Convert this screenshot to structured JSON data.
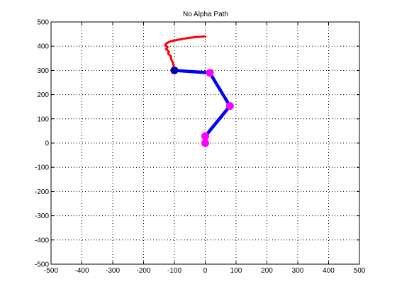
{
  "chart_data": {
    "type": "line",
    "title": "No Alpha Path",
    "xlabel": "",
    "ylabel": "",
    "xlim": [
      -500,
      500
    ],
    "ylim": [
      -500,
      500
    ],
    "xticks": [
      -500,
      -400,
      -300,
      -200,
      -100,
      0,
      100,
      200,
      300,
      400,
      500
    ],
    "yticks": [
      -500,
      -400,
      -300,
      -200,
      -100,
      0,
      100,
      200,
      300,
      400,
      500
    ],
    "grid": true,
    "grid_style": "dotted",
    "series": [
      {
        "role": "path",
        "color": "#ff0000",
        "x": [
          0,
          -30,
          -60,
          -90,
          -110,
          -125,
          -130,
          -122,
          -127,
          -118,
          -120,
          -112,
          -110,
          -105,
          -100
        ],
        "y": [
          440,
          438,
          433,
          426,
          421,
          413,
          404,
          396,
          388,
          378,
          369,
          359,
          345,
          332,
          305
        ]
      },
      {
        "role": "arm",
        "color": "#0000ff",
        "x": [
          -100,
          15,
          80,
          0,
          0
        ],
        "y": [
          300,
          290,
          153,
          28,
          0
        ]
      },
      {
        "role": "joints",
        "color": "#ff00ff",
        "x": [
          15,
          80,
          0,
          0
        ],
        "y": [
          290,
          153,
          28,
          0
        ]
      },
      {
        "role": "end-effector",
        "color": "#0000aa",
        "x": [
          -100
        ],
        "y": [
          300
        ]
      }
    ]
  }
}
